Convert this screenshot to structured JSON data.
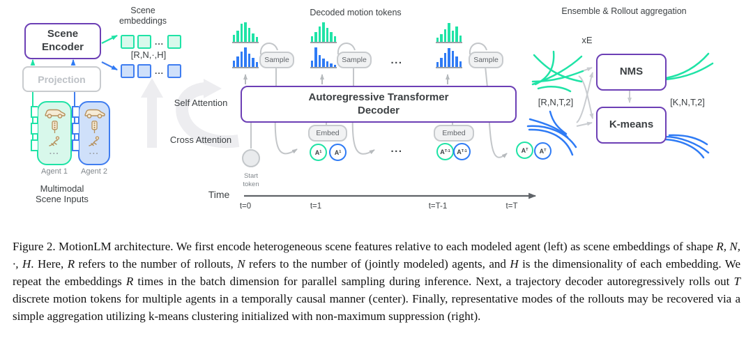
{
  "palette": {
    "green": "#1fe3a6",
    "blue": "#2f7bf5",
    "purple": "#6c3fb5",
    "gray_arrow": "#b6babd",
    "light_arrow": "#ededf0",
    "dark_text": "#3c4043",
    "gray_text": "#80868b",
    "icon_tan": "#b5905c"
  },
  "left": {
    "scene_encoder": "Scene Encoder",
    "projection": "Projection",
    "agent1": "Agent 1",
    "agent2": "Agent 2",
    "inputs_label": "Multimodal Scene Inputs",
    "embeddings_label": "Scene embeddings",
    "shape_label": "[R,N,·,H]",
    "ellipsis": "...",
    "card_ellipsis": "...",
    "icons": [
      "car-icon",
      "traffic-light-icon",
      "pedestrian-icon"
    ]
  },
  "attention": {
    "self": "Self Attention",
    "cross": "Cross Attention"
  },
  "center": {
    "title": "Decoded motion tokens",
    "decoder": "Autoregressive Transformer Decoder",
    "sample": "Sample",
    "embed": "Embed",
    "start_token": "Start token",
    "time": "Time",
    "ticks": [
      "t=0",
      "t=1",
      "t=T-1",
      "t=T"
    ],
    "ellipsis": "..."
  },
  "histograms": {
    "t0_green": [
      10,
      16,
      26,
      28,
      20,
      12,
      7
    ],
    "t0_blue": [
      9,
      15,
      22,
      28,
      19,
      13,
      7
    ],
    "t1_green": [
      8,
      14,
      22,
      28,
      20,
      14,
      8
    ],
    "t1_blue": [
      9,
      28,
      17,
      12,
      8,
      5,
      3
    ],
    "tT1_green": [
      6,
      11,
      18,
      27,
      16,
      22,
      9
    ],
    "tT1_blue": [
      7,
      13,
      20,
      27,
      23,
      15,
      8
    ]
  },
  "tokens": [
    {
      "label": "A",
      "sub": "1",
      "color": "green"
    },
    {
      "label": "A",
      "sub": "1",
      "color": "blue"
    },
    {
      "label": "A",
      "sub": "T-1",
      "color": "green"
    },
    {
      "label": "A",
      "sub": "T-1",
      "color": "blue"
    },
    {
      "label": "A",
      "sub": "T",
      "color": "green"
    },
    {
      "label": "A",
      "sub": "T",
      "color": "blue"
    }
  ],
  "right": {
    "title": "Ensemble & Rollout aggregation",
    "xe": "xE",
    "nms": "NMS",
    "kmeans": "K-means",
    "in_shape": "[R,N,T,2]",
    "out_shape": "[K,N,T,2]"
  },
  "caption": {
    "segments": [
      {
        "text": "Figure 2. MotionLM architecture. We first encode heterogeneous scene features relative to each modeled agent (left) as scene embeddings of shape ",
        "italic": false
      },
      {
        "text": "R, N, ·, H",
        "italic": true
      },
      {
        "text": ". Here, ",
        "italic": false
      },
      {
        "text": "R",
        "italic": true
      },
      {
        "text": " refers to the number of rollouts, ",
        "italic": false
      },
      {
        "text": "N",
        "italic": true
      },
      {
        "text": " refers to the number of (jointly modeled) agents, and ",
        "italic": false
      },
      {
        "text": "H",
        "italic": true
      },
      {
        "text": " is the dimensionality of each embedding. We repeat the embeddings ",
        "italic": false
      },
      {
        "text": "R",
        "italic": true
      },
      {
        "text": " times in the batch dimension for parallel sampling during inference. Next, a trajectory decoder autoregressively rolls out ",
        "italic": false
      },
      {
        "text": "T",
        "italic": true
      },
      {
        "text": " discrete motion tokens for multiple agents in a temporally causal manner (center). Finally, representative modes of the rollouts may be recovered via a simple aggregation utilizing k-means clustering initialized with non-maximum suppression (right).",
        "italic": false
      }
    ]
  }
}
